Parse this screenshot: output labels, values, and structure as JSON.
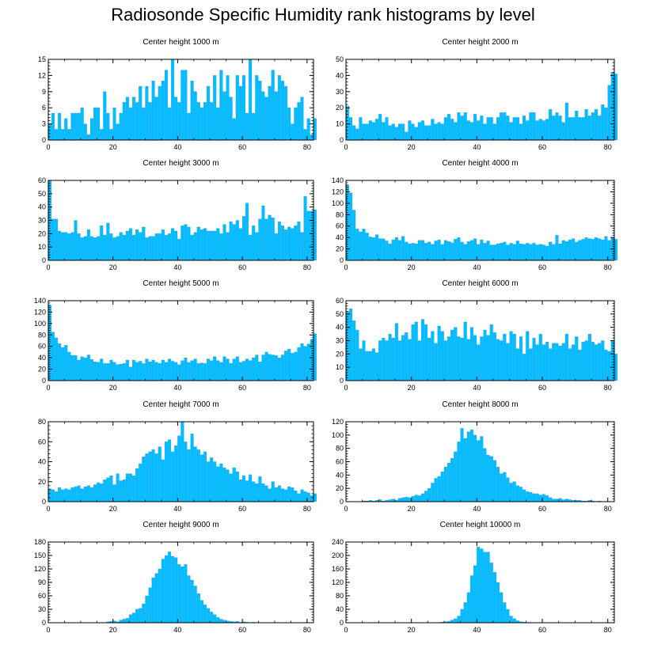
{
  "title": "Radiosonde Specific Humidity rank histograms by level",
  "colors": {
    "bar": "#00bfff",
    "bar_edge": "#1e90ff",
    "axis": "#000000"
  },
  "chart_data": [
    {
      "type": "bar",
      "title": "Center height 1000 m",
      "xlim": [
        0,
        82
      ],
      "ylim": [
        0,
        15
      ],
      "xticks": [
        0,
        20,
        40,
        60,
        80
      ],
      "yticks": [
        0,
        3,
        6,
        9,
        12,
        15
      ],
      "values": [
        3,
        5,
        2,
        5,
        2,
        4,
        2,
        5,
        5,
        5,
        6,
        3,
        1,
        4,
        6,
        6,
        2,
        9,
        5,
        2,
        6,
        3,
        5,
        7,
        8,
        6,
        8,
        7,
        10,
        6,
        10,
        7,
        11,
        8,
        10,
        11,
        13,
        6,
        15,
        8,
        7,
        13,
        13,
        5,
        11,
        9,
        7,
        6,
        7,
        10,
        7,
        12,
        6,
        13,
        9,
        12,
        8,
        4,
        12,
        10,
        12,
        5,
        15,
        5,
        12,
        11,
        9,
        8,
        10,
        13,
        9,
        12,
        11,
        10,
        6,
        3,
        6,
        7,
        8,
        2,
        4,
        1,
        4
      ]
    },
    {
      "type": "bar",
      "title": "Center height 2000 m",
      "xlim": [
        0,
        82
      ],
      "ylim": [
        0,
        50
      ],
      "xticks": [
        0,
        20,
        40,
        60,
        80
      ],
      "yticks": [
        0,
        10,
        20,
        30,
        40,
        50
      ],
      "values": [
        21,
        14,
        9,
        7,
        14,
        10,
        10,
        12,
        11,
        13,
        16,
        11,
        14,
        9,
        10,
        8,
        10,
        10,
        5,
        12,
        10,
        8,
        11,
        12,
        9,
        9,
        13,
        10,
        11,
        10,
        14,
        16,
        13,
        11,
        17,
        15,
        17,
        12,
        11,
        16,
        12,
        15,
        10,
        14,
        14,
        10,
        14,
        17,
        17,
        15,
        11,
        14,
        14,
        10,
        15,
        12,
        17,
        17,
        12,
        13,
        12,
        13,
        19,
        15,
        17,
        15,
        11,
        23,
        14,
        14,
        18,
        14,
        14,
        19,
        15,
        17,
        19,
        15,
        22,
        20,
        34,
        42,
        41
      ]
    },
    {
      "type": "bar",
      "title": "Center height 3000 m",
      "xlim": [
        0,
        82
      ],
      "ylim": [
        0,
        60
      ],
      "xticks": [
        0,
        20,
        40,
        60,
        80
      ],
      "yticks": [
        0,
        10,
        20,
        30,
        40,
        50,
        60
      ],
      "values": [
        60,
        31,
        31,
        22,
        21,
        21,
        20,
        21,
        30,
        20,
        17,
        18,
        23,
        18,
        17,
        18,
        26,
        19,
        28,
        20,
        17,
        18,
        21,
        19,
        22,
        24,
        19,
        23,
        21,
        25,
        17,
        18,
        18,
        20,
        20,
        23,
        19,
        20,
        24,
        22,
        16,
        26,
        27,
        25,
        19,
        21,
        25,
        23,
        24,
        22,
        22,
        22,
        24,
        20,
        27,
        21,
        29,
        27,
        30,
        24,
        33,
        43,
        19,
        26,
        21,
        31,
        41,
        31,
        34,
        32,
        20,
        29,
        26,
        23,
        25,
        24,
        26,
        29,
        21,
        48,
        37,
        37,
        38
      ]
    },
    {
      "type": "bar",
      "title": "Center height 4000 m",
      "xlim": [
        0,
        82
      ],
      "ylim": [
        0,
        140
      ],
      "xticks": [
        0,
        20,
        40,
        60,
        80
      ],
      "yticks": [
        0,
        20,
        40,
        60,
        80,
        100,
        120,
        140
      ],
      "values": [
        132,
        118,
        88,
        55,
        50,
        55,
        48,
        41,
        40,
        45,
        38,
        38,
        34,
        29,
        36,
        40,
        35,
        42,
        32,
        29,
        30,
        29,
        35,
        35,
        30,
        32,
        28,
        34,
        36,
        28,
        35,
        33,
        31,
        37,
        40,
        32,
        28,
        33,
        35,
        38,
        28,
        36,
        30,
        34,
        27,
        27,
        29,
        30,
        32,
        27,
        30,
        28,
        34,
        29,
        28,
        30,
        28,
        30,
        27,
        28,
        27,
        25,
        32,
        28,
        44,
        29,
        35,
        33,
        36,
        38,
        32,
        35,
        37,
        40,
        38,
        37,
        40,
        38,
        36,
        42,
        35,
        40,
        37
      ]
    },
    {
      "type": "bar",
      "title": "Center height 5000 m",
      "xlim": [
        0,
        82
      ],
      "ylim": [
        0,
        140
      ],
      "xticks": [
        0,
        20,
        40,
        60,
        80
      ],
      "yticks": [
        0,
        20,
        40,
        60,
        80,
        100,
        120,
        140
      ],
      "values": [
        132,
        85,
        75,
        65,
        58,
        62,
        50,
        44,
        44,
        36,
        42,
        40,
        45,
        37,
        33,
        32,
        38,
        30,
        30,
        36,
        32,
        28,
        29,
        30,
        36,
        24,
        36,
        32,
        34,
        30,
        38,
        33,
        36,
        32,
        30,
        36,
        32,
        38,
        34,
        32,
        28,
        35,
        40,
        32,
        35,
        38,
        30,
        31,
        30,
        38,
        35,
        42,
        35,
        32,
        42,
        38,
        30,
        38,
        42,
        32,
        34,
        38,
        35,
        40,
        45,
        33,
        45,
        50,
        46,
        45,
        44,
        40,
        45,
        52,
        55,
        48,
        50,
        58,
        65,
        60,
        64,
        72,
        82
      ]
    },
    {
      "type": "bar",
      "title": "Center height 6000 m",
      "xlim": [
        0,
        82
      ],
      "ylim": [
        0,
        60
      ],
      "xticks": [
        0,
        20,
        40,
        60,
        80
      ],
      "yticks": [
        0,
        10,
        20,
        30,
        40,
        50,
        60
      ],
      "values": [
        52,
        54,
        45,
        38,
        24,
        30,
        22,
        22,
        24,
        21,
        30,
        32,
        30,
        35,
        32,
        43,
        30,
        34,
        36,
        31,
        42,
        44,
        30,
        46,
        42,
        32,
        37,
        28,
        41,
        37,
        30,
        33,
        38,
        40,
        33,
        32,
        44,
        31,
        40,
        34,
        27,
        33,
        38,
        34,
        42,
        36,
        31,
        30,
        35,
        28,
        37,
        35,
        24,
        33,
        20,
        37,
        24,
        32,
        27,
        35,
        27,
        29,
        24,
        28,
        28,
        26,
        28,
        35,
        24,
        27,
        33,
        23,
        29,
        30,
        35,
        29,
        27,
        28,
        30,
        23,
        22,
        30,
        20
      ]
    },
    {
      "type": "bar",
      "title": "Center height 7000 m",
      "xlim": [
        0,
        82
      ],
      "ylim": [
        0,
        80
      ],
      "xticks": [
        0,
        20,
        40,
        60,
        80
      ],
      "yticks": [
        0,
        20,
        40,
        60,
        80
      ],
      "values": [
        13,
        12,
        10,
        14,
        12,
        13,
        12,
        14,
        15,
        16,
        13,
        15,
        16,
        14,
        17,
        19,
        18,
        22,
        24,
        26,
        17,
        28,
        21,
        22,
        28,
        28,
        26,
        33,
        38,
        45,
        48,
        50,
        52,
        48,
        55,
        42,
        60,
        62,
        50,
        56,
        66,
        80,
        60,
        52,
        68,
        55,
        52,
        47,
        50,
        40,
        44,
        40,
        35,
        38,
        34,
        32,
        28,
        34,
        30,
        22,
        26,
        21,
        27,
        20,
        18,
        25,
        18,
        16,
        13,
        20,
        14,
        16,
        13,
        12,
        15,
        14,
        11,
        8,
        12,
        10,
        9,
        6,
        8
      ]
    },
    {
      "type": "bar",
      "title": "Center height 8000 m",
      "xlim": [
        0,
        82
      ],
      "ylim": [
        0,
        120
      ],
      "xticks": [
        0,
        20,
        40,
        60,
        80
      ],
      "yticks": [
        0,
        20,
        40,
        60,
        80,
        100,
        120
      ],
      "values": [
        0,
        0,
        0,
        0,
        0,
        1,
        1,
        2,
        1,
        2,
        3,
        1,
        2,
        3,
        4,
        2,
        5,
        6,
        7,
        6,
        8,
        10,
        9,
        12,
        16,
        20,
        28,
        35,
        38,
        45,
        52,
        58,
        65,
        75,
        90,
        110,
        95,
        105,
        108,
        100,
        92,
        98,
        80,
        70,
        68,
        62,
        52,
        42,
        44,
        36,
        28,
        30,
        24,
        22,
        18,
        15,
        14,
        12,
        12,
        10,
        11,
        9,
        6,
        4,
        4,
        5,
        3,
        4,
        3,
        2,
        2,
        2,
        1,
        1,
        2,
        1,
        0,
        1,
        0,
        0,
        0,
        0,
        0
      ]
    },
    {
      "type": "bar",
      "title": "Center height 9000 m",
      "xlim": [
        0,
        82
      ],
      "ylim": [
        0,
        180
      ],
      "xticks": [
        0,
        20,
        40,
        60,
        80
      ],
      "yticks": [
        0,
        30,
        60,
        90,
        120,
        150,
        180
      ],
      "values": [
        0,
        0,
        0,
        0,
        0,
        0,
        0,
        0,
        0,
        0,
        0,
        0,
        0,
        0,
        0,
        0,
        0,
        0,
        2,
        3,
        4,
        2,
        6,
        8,
        10,
        18,
        22,
        30,
        32,
        42,
        60,
        78,
        100,
        110,
        120,
        142,
        150,
        158,
        148,
        145,
        130,
        125,
        130,
        105,
        95,
        82,
        65,
        50,
        40,
        32,
        24,
        18,
        12,
        8,
        6,
        4,
        3,
        2,
        3,
        1,
        2,
        1,
        0,
        1,
        0,
        0,
        0,
        0,
        0,
        0,
        0,
        0,
        0,
        0,
        0,
        0,
        0,
        0,
        0,
        0,
        0,
        0,
        0
      ]
    },
    {
      "type": "bar",
      "title": "Center height 10000 m",
      "xlim": [
        0,
        82
      ],
      "ylim": [
        0,
        240
      ],
      "xticks": [
        0,
        20,
        40,
        60,
        80
      ],
      "yticks": [
        0,
        40,
        80,
        120,
        160,
        200,
        240
      ],
      "values": [
        0,
        0,
        0,
        0,
        0,
        0,
        0,
        0,
        0,
        0,
        0,
        0,
        0,
        0,
        0,
        0,
        0,
        0,
        0,
        0,
        0,
        0,
        0,
        0,
        0,
        0,
        0,
        0,
        1,
        2,
        3,
        4,
        8,
        12,
        20,
        40,
        60,
        90,
        140,
        170,
        225,
        220,
        210,
        210,
        178,
        150,
        120,
        90,
        60,
        40,
        20,
        12,
        6,
        3,
        2,
        1,
        1,
        0,
        0,
        0,
        0,
        0,
        0,
        0,
        0,
        0,
        0,
        0,
        0,
        0,
        0,
        0,
        0,
        0,
        0,
        0,
        0,
        0,
        0,
        0,
        0,
        0,
        0
      ]
    }
  ]
}
